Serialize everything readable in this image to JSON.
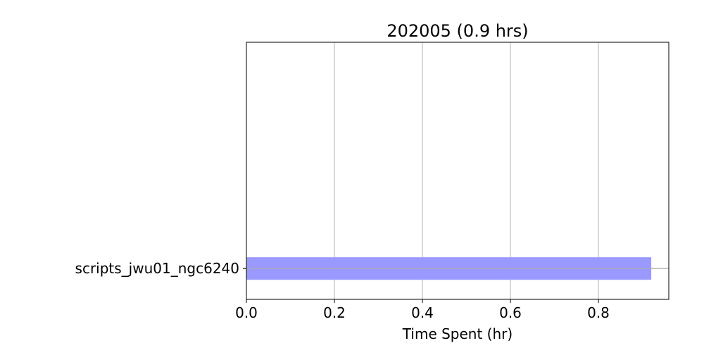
{
  "chart_data": {
    "type": "bar",
    "orientation": "horizontal",
    "title": "202005 (0.9 hrs)",
    "xlabel": "Time Spent (hr)",
    "ylabel": "",
    "categories": [
      "scripts_jwu01_ngc6240"
    ],
    "values": [
      0.92
    ],
    "xlim": [
      0.0,
      0.96
    ],
    "xticks": [
      "0.0",
      "0.2",
      "0.4",
      "0.6",
      "0.8"
    ],
    "grid": true,
    "bar_color": "#9999ff",
    "grid_color": "#b0b0b0"
  }
}
